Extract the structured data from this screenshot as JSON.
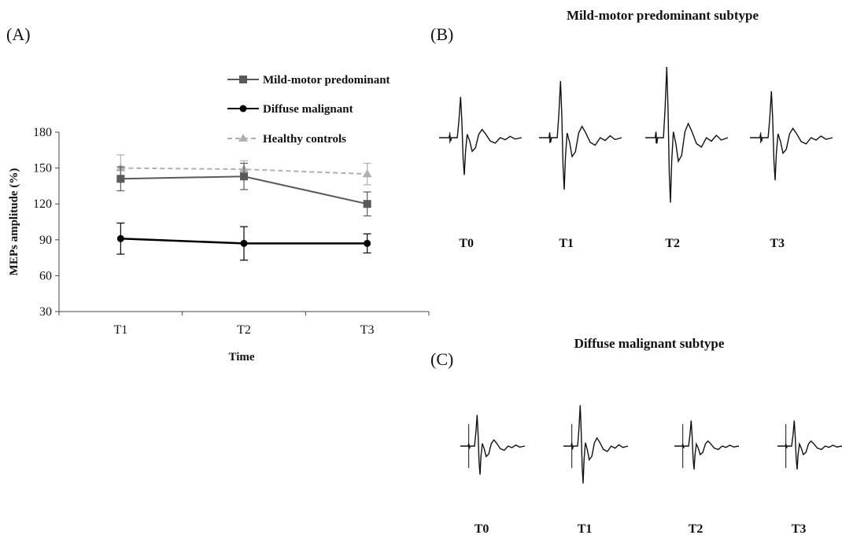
{
  "panels": {
    "a_label": "(A)",
    "b_label": "(B)",
    "c_label": "(C)"
  },
  "chart_data": [
    {
      "type": "line",
      "panel": "(A)",
      "xlabel": "Time",
      "ylabel": "MEPs amplitude (%)",
      "categories": [
        "T1",
        "T2",
        "T3"
      ],
      "ylim": [
        30,
        180
      ],
      "yticks": [
        30,
        60,
        90,
        120,
        150,
        180
      ],
      "grid": false,
      "legend_position": "top-right",
      "series": [
        {
          "name": "Mild-motor predominant",
          "values": [
            141,
            143,
            120
          ],
          "error": [
            10,
            11,
            10
          ],
          "color": "#5a5a5a",
          "marker": "square",
          "dash": "solid"
        },
        {
          "name": "Diffuse malignant",
          "values": [
            91,
            87,
            87
          ],
          "error": [
            13,
            14,
            8
          ],
          "color": "#000000",
          "marker": "circle",
          "dash": "solid"
        },
        {
          "name": "Healthy controls",
          "values": [
            150,
            149,
            145
          ],
          "error": [
            11,
            7,
            9
          ],
          "color": "#b0b0b0",
          "marker": "triangle",
          "dash": "dashed"
        }
      ]
    }
  ],
  "traces": {
    "b": {
      "title": "Mild-motor predominant subtype",
      "labels": [
        "T0",
        "T1",
        "T2",
        "T3"
      ],
      "amplitudes": [
        0.72,
        1.0,
        1.25,
        0.82
      ]
    },
    "c": {
      "title": "Diffuse malignant subtype",
      "labels": [
        "T0",
        "T1",
        "T2",
        "T3"
      ],
      "amplitudes": [
        0.55,
        0.72,
        0.45,
        0.45
      ]
    }
  }
}
